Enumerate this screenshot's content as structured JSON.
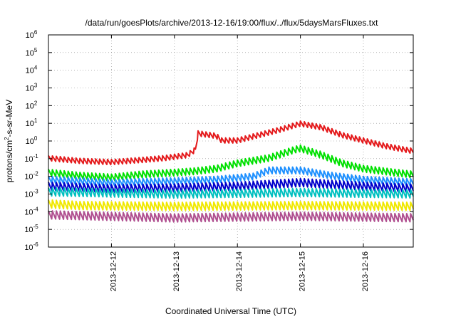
{
  "chart_data": {
    "type": "line",
    "title": "/data/run/goesPlots/archive/2013-12-16/19:00/flux/../flux/5daysMarsFluxes.txt",
    "xlabel": "Coordinated Universal Time (UTC)",
    "ylabel": {
      "base": "protons/cm",
      "sup": "2",
      "rest": "-s-sr-MeV"
    },
    "y_scale": "log",
    "ylim": [
      1e-06,
      1000000.0
    ],
    "xlim": [
      "2013-12-11 00:00",
      "2013-12-16 19:00"
    ],
    "x_ticks": [
      "2013-12-12",
      "2013-12-13",
      "2013-12-14",
      "2013-12-15",
      "2013-12-16"
    ],
    "y_ticks": [
      {
        "base": "10",
        "exp": "-6"
      },
      {
        "base": "10",
        "exp": "-5"
      },
      {
        "base": "10",
        "exp": "-4"
      },
      {
        "base": "10",
        "exp": "-3"
      },
      {
        "base": "10",
        "exp": "-2"
      },
      {
        "base": "10",
        "exp": "-1"
      },
      {
        "base": "10",
        "exp": "0"
      },
      {
        "base": "10",
        "exp": "1"
      },
      {
        "base": "10",
        "exp": "2"
      },
      {
        "base": "10",
        "exp": "3"
      },
      {
        "base": "10",
        "exp": "4"
      },
      {
        "base": "10",
        "exp": "5"
      },
      {
        "base": "10",
        "exp": "6"
      }
    ],
    "grid": true,
    "sawtooth_period_hours": 1.5,
    "series": [
      {
        "color": "#e41a1c",
        "values": [
          [
            0.0,
            0.1
          ],
          [
            12.0,
            0.07
          ],
          [
            24.0,
            0.06
          ],
          [
            36.0,
            0.08
          ],
          [
            44.0,
            0.1
          ],
          [
            53.0,
            0.15
          ],
          [
            56.0,
            0.3
          ],
          [
            57.0,
            2.5
          ],
          [
            64.0,
            1.8
          ],
          [
            66.0,
            1.0
          ],
          [
            72.0,
            1.0
          ],
          [
            80.0,
            2.0
          ],
          [
            88.0,
            4.0
          ],
          [
            96.0,
            9.0
          ],
          [
            104.0,
            5.5
          ],
          [
            112.0,
            2.0
          ],
          [
            120.0,
            1.0
          ],
          [
            128.0,
            0.5
          ],
          [
            136.0,
            0.3
          ],
          [
            143.0,
            0.2
          ]
        ]
      },
      {
        "color": "#00e000",
        "values": [
          [
            0.0,
            0.015
          ],
          [
            12.0,
            0.01
          ],
          [
            24.0,
            0.008
          ],
          [
            36.0,
            0.012
          ],
          [
            48.0,
            0.015
          ],
          [
            56.0,
            0.018
          ],
          [
            64.0,
            0.025
          ],
          [
            72.0,
            0.05
          ],
          [
            84.0,
            0.1
          ],
          [
            94.0,
            0.3
          ],
          [
            96.0,
            0.35
          ],
          [
            104.0,
            0.15
          ],
          [
            112.0,
            0.05
          ],
          [
            120.0,
            0.025
          ],
          [
            132.0,
            0.015
          ],
          [
            143.0,
            0.01
          ]
        ]
      },
      {
        "color": "#1e90ff",
        "values": [
          [
            0.0,
            0.006
          ],
          [
            24.0,
            0.004
          ],
          [
            48.0,
            0.005
          ],
          [
            64.0,
            0.006
          ],
          [
            78.0,
            0.009
          ],
          [
            84.0,
            0.02
          ],
          [
            96.0,
            0.02
          ],
          [
            108.0,
            0.01
          ],
          [
            120.0,
            0.006
          ],
          [
            143.0,
            0.004
          ]
        ]
      },
      {
        "color": "#0000cc",
        "values": [
          [
            0.0,
            0.0025
          ],
          [
            24.0,
            0.0018
          ],
          [
            48.0,
            0.002
          ],
          [
            72.0,
            0.0025
          ],
          [
            96.0,
            0.004
          ],
          [
            120.0,
            0.0025
          ],
          [
            143.0,
            0.0018
          ]
        ]
      },
      {
        "color": "#00c0c0",
        "values": [
          [
            0.0,
            0.0012
          ],
          [
            48.0,
            0.0009
          ],
          [
            96.0,
            0.0011
          ],
          [
            143.0,
            0.0009
          ]
        ]
      },
      {
        "color": "#f0e800",
        "values": [
          [
            0.0,
            0.00025
          ],
          [
            12.0,
            0.0002
          ],
          [
            48.0,
            0.00018
          ],
          [
            96.0,
            0.0002
          ],
          [
            143.0,
            0.00018
          ]
        ]
      },
      {
        "color": "#b05090",
        "values": [
          [
            0.0,
            6e-05
          ],
          [
            48.0,
            4e-05
          ],
          [
            96.0,
            5e-05
          ],
          [
            143.0,
            4e-05
          ]
        ]
      }
    ]
  }
}
